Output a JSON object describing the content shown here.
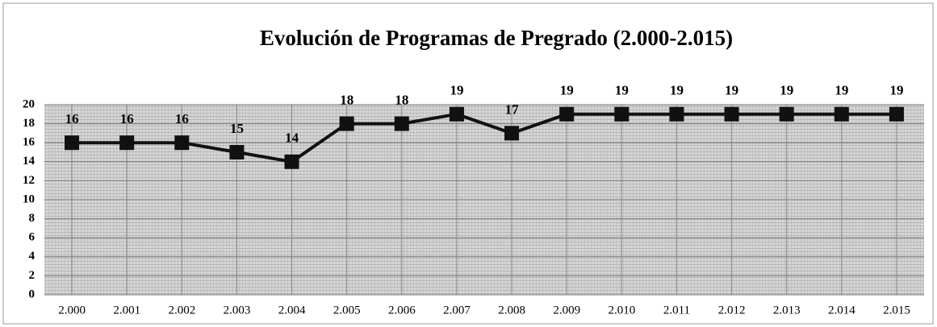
{
  "chart_data": {
    "type": "line",
    "title": "Evolución de Programas de Pregrado (2.000-2.015)",
    "categories": [
      "2.000",
      "2.001",
      "2.002",
      "2.003",
      "2.004",
      "2.005",
      "2.006",
      "2.007",
      "2.008",
      "2.009",
      "2.010",
      "2.011",
      "2.012",
      "2.013",
      "2.014",
      "2.015"
    ],
    "values": [
      16,
      16,
      16,
      15,
      14,
      18,
      18,
      19,
      17,
      19,
      19,
      19,
      19,
      19,
      19,
      19
    ],
    "color": "#111111",
    "ylim": [
      0,
      20
    ],
    "yticks": [
      0,
      2,
      4,
      6,
      8,
      10,
      12,
      14,
      16,
      18,
      20
    ],
    "grid": true
  }
}
